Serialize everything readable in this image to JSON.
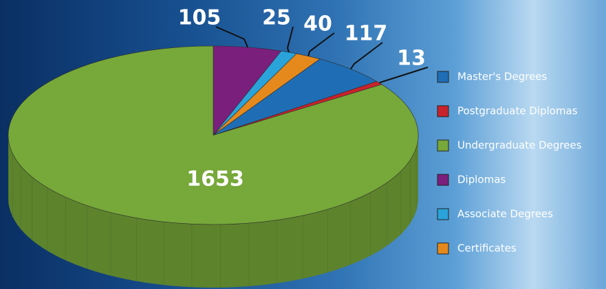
{
  "chart_data": {
    "type": "pie3d",
    "categories": [
      "Master's Degrees",
      "Postgraduate Diplomas",
      "Undergraduate Degrees",
      "Diplomas",
      "Associate Degrees",
      "Certificates"
    ],
    "values": [
      117,
      13,
      1653,
      105,
      25,
      40
    ],
    "colors": [
      "#1f6eb5",
      "#c8232c",
      "#77a83a",
      "#7b1f7d",
      "#29a3d9",
      "#e5891c"
    ],
    "legend": "right"
  }
}
